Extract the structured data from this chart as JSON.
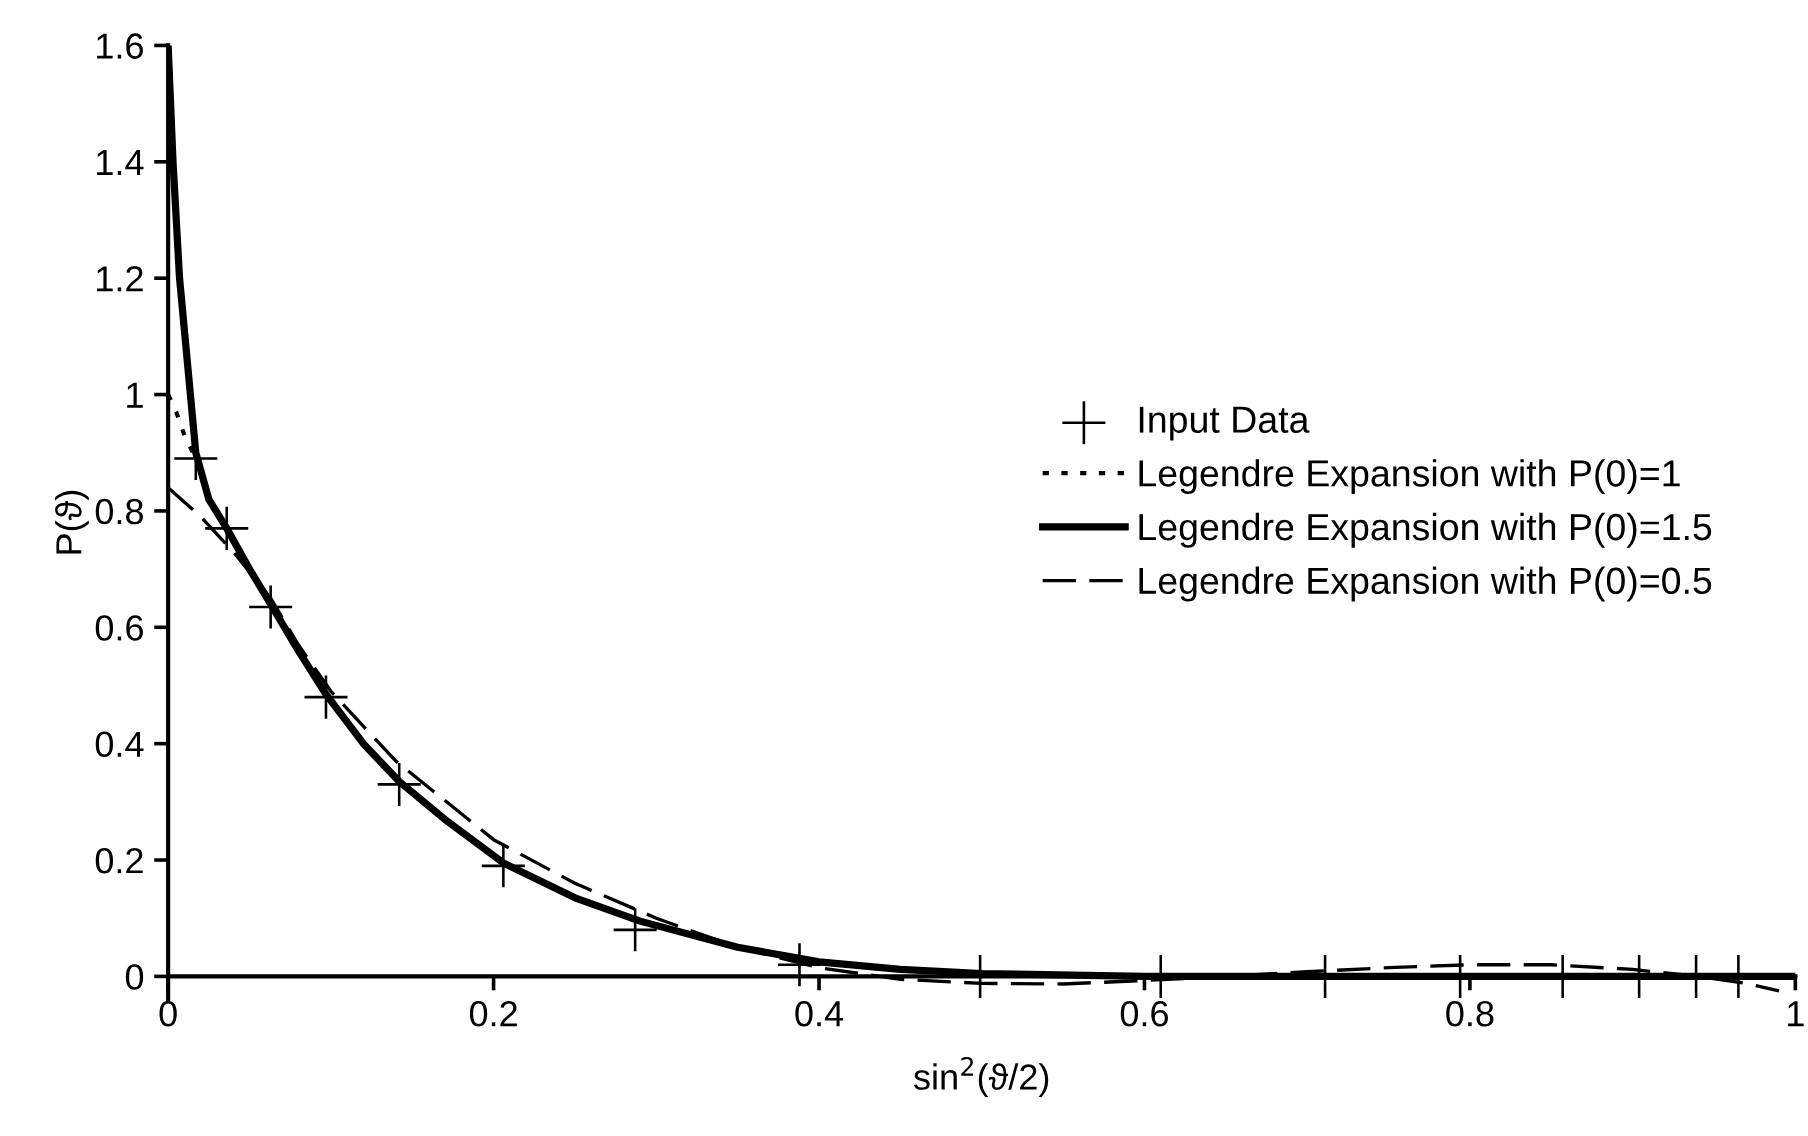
{
  "chart_data": {
    "type": "line",
    "xlabel": "sin$^{2}$(ϑ/2)",
    "ylabel": "P(ϑ)",
    "xlim": [
      0,
      1
    ],
    "xticks": [
      0,
      0.2,
      0.4,
      0.6,
      0.8,
      1
    ],
    "ylim": [
      -0.04,
      1.6
    ],
    "yticks": [
      0,
      0.2,
      0.4,
      0.6,
      0.8,
      1,
      1.2,
      1.4,
      1.6
    ],
    "grid": false,
    "legend": "right",
    "series": [
      {
        "name": "Input Data",
        "type": "scatter",
        "marker": "cross",
        "color": "#000000",
        "x": [
          0.017,
          0.036,
          0.063,
          0.097,
          0.142,
          0.206,
          0.287,
          0.388,
          0.499,
          0.61,
          0.711,
          0.794,
          0.857,
          0.904,
          0.939,
          0.965
        ],
        "values": [
          0.89,
          0.77,
          0.635,
          0.48,
          0.33,
          0.19,
          0.08,
          0.02,
          0.0,
          0.0,
          0.0,
          0.0,
          0.0,
          0.0,
          0.0,
          0.0
        ]
      },
      {
        "name": "Legendre Expansion with P(0)=1",
        "line_style": "dotted",
        "color": "#000000",
        "x": [
          0,
          0.005,
          0.01,
          0.017,
          0.025
        ],
        "values": [
          1.0,
          0.97,
          0.93,
          0.89,
          0.83
        ]
      },
      {
        "name": "Legendre Expansion with P(0)=1.5",
        "line_style": "solid",
        "color": "#000000",
        "x": [
          0,
          0.003,
          0.007,
          0.012,
          0.017,
          0.025,
          0.036,
          0.05,
          0.063,
          0.08,
          0.097,
          0.12,
          0.142,
          0.17,
          0.206,
          0.25,
          0.29,
          0.35,
          0.4,
          0.45,
          0.5,
          0.6,
          0.7,
          0.8,
          0.9,
          1.0
        ],
        "values": [
          1.6,
          1.4,
          1.2,
          1.05,
          0.9,
          0.82,
          0.77,
          0.7,
          0.64,
          0.56,
          0.485,
          0.4,
          0.335,
          0.27,
          0.195,
          0.135,
          0.095,
          0.05,
          0.025,
          0.012,
          0.005,
          0.0,
          0.0,
          0.0,
          0.0,
          0.0
        ]
      },
      {
        "name": "Legendre Expansion with P(0)=0.5",
        "line_style": "dashed",
        "color": "#000000",
        "x": [
          0,
          0.02,
          0.04,
          0.063,
          0.08,
          0.1,
          0.14,
          0.2,
          0.25,
          0.3,
          0.35,
          0.4,
          0.45,
          0.5,
          0.55,
          0.6,
          0.65,
          0.7,
          0.75,
          0.8,
          0.85,
          0.9,
          0.94,
          0.97,
          0.99
        ],
        "values": [
          0.84,
          0.79,
          0.73,
          0.65,
          0.57,
          0.49,
          0.37,
          0.235,
          0.16,
          0.1,
          0.05,
          0.015,
          -0.005,
          -0.012,
          -0.013,
          -0.007,
          0.0,
          0.008,
          0.015,
          0.02,
          0.02,
          0.012,
          0.0,
          -0.012,
          -0.025
        ]
      }
    ]
  }
}
